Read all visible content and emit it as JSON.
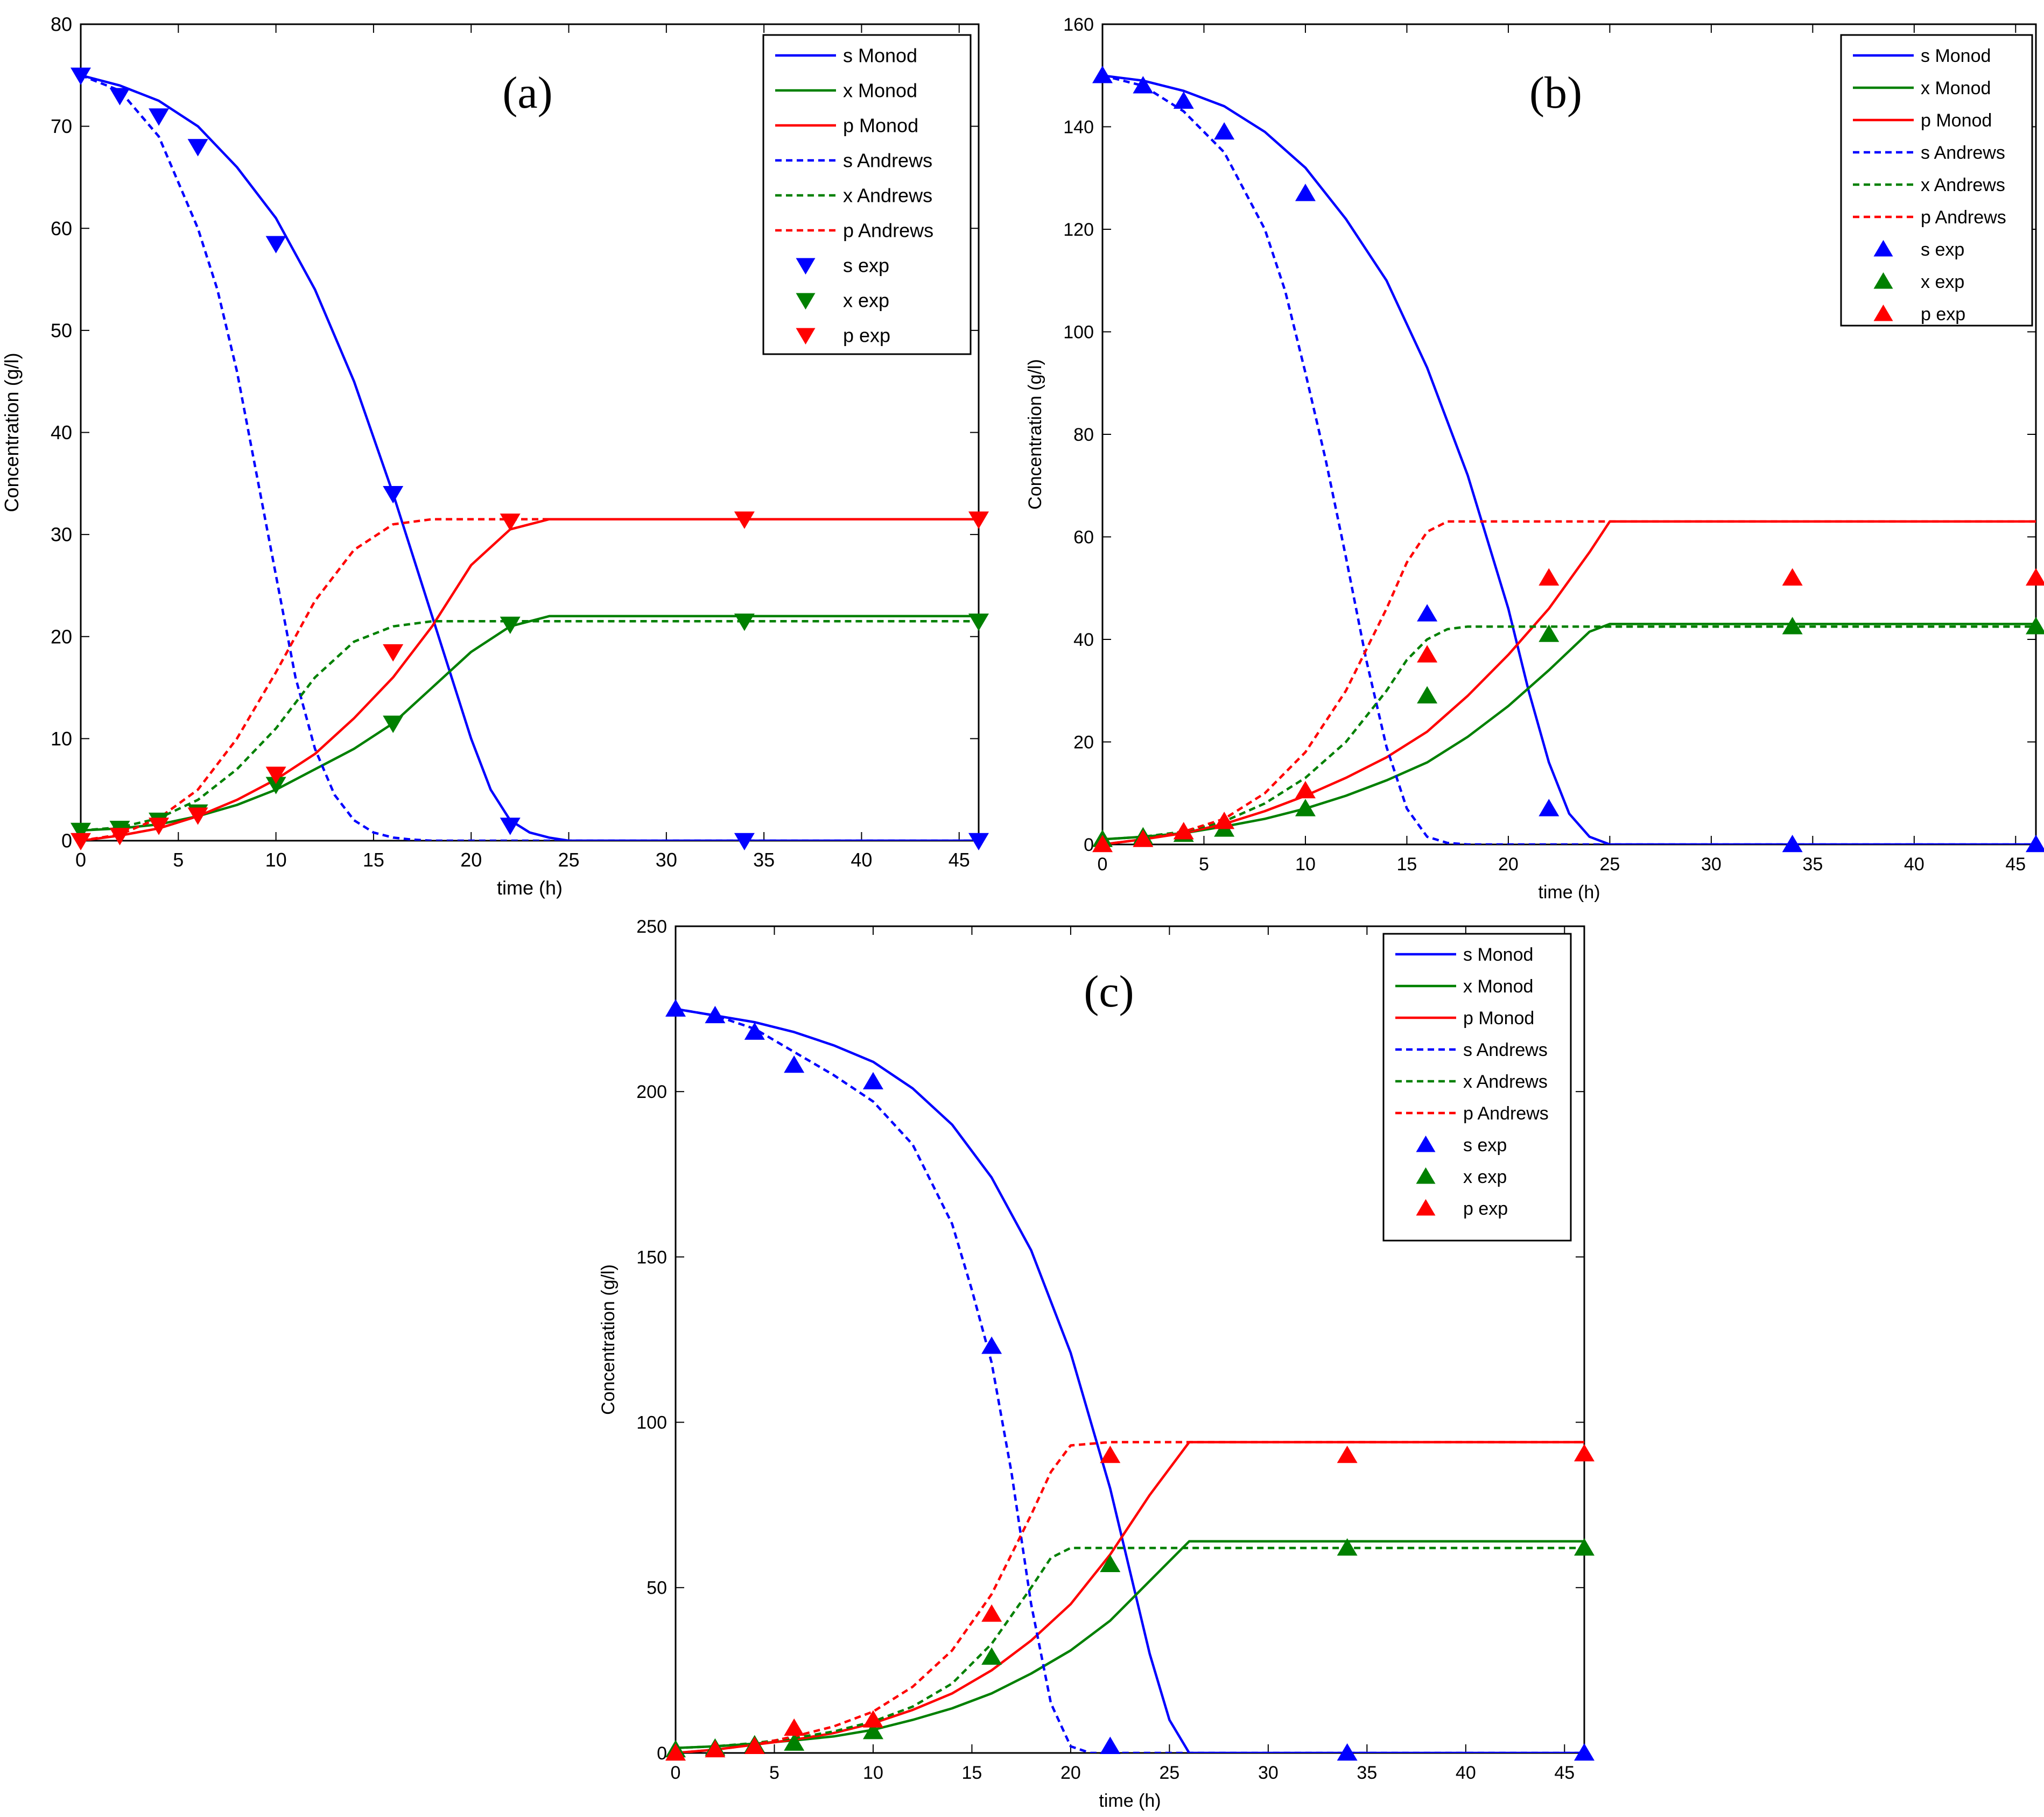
{
  "colors": {
    "s": "#0000ff",
    "x": "#008000",
    "p": "#ff0000",
    "axis": "#000000"
  },
  "chart_data": [
    {
      "type": "line",
      "panel_label": "(a)",
      "xlabel": "time (h)",
      "ylabel": "Concentration (g/l)",
      "xlim": [
        0,
        46
      ],
      "ylim": [
        0,
        80
      ],
      "xticks": [
        0,
        5,
        10,
        15,
        20,
        25,
        30,
        35,
        40,
        45
      ],
      "yticks": [
        0,
        10,
        20,
        30,
        40,
        50,
        60,
        70,
        80
      ],
      "legend_position": "top-right",
      "exp_marker": "triangle-down",
      "legend": [
        "s Monod",
        "x Monod",
        "p Monod",
        "s Andrews",
        "x Andrews",
        "p Andrews",
        "s exp",
        "x exp",
        "p exp"
      ],
      "series": [
        {
          "name": "s Monod",
          "var": "s",
          "style": "solid",
          "x": [
            0,
            2,
            4,
            6,
            8,
            10,
            12,
            14,
            16,
            18,
            20,
            21,
            22,
            23,
            24,
            25,
            30,
            35,
            40,
            46
          ],
          "y": [
            75,
            74,
            72.5,
            70,
            66,
            61,
            54,
            45,
            34,
            22,
            10,
            5,
            2,
            0.8,
            0.3,
            0,
            0,
            0,
            0,
            0
          ]
        },
        {
          "name": "x Monod",
          "var": "x",
          "style": "solid",
          "x": [
            0,
            2,
            4,
            6,
            8,
            10,
            12,
            14,
            16,
            18,
            20,
            22,
            24,
            25,
            30,
            35,
            40,
            46
          ],
          "y": [
            1,
            1.2,
            1.6,
            2.4,
            3.5,
            5,
            7,
            9,
            11.5,
            15,
            18.5,
            21,
            22,
            22,
            22,
            22,
            22,
            22
          ]
        },
        {
          "name": "p Monod",
          "var": "p",
          "style": "solid",
          "x": [
            0,
            2,
            4,
            6,
            8,
            10,
            12,
            14,
            16,
            18,
            20,
            22,
            24,
            25,
            30,
            35,
            40,
            46
          ],
          "y": [
            0,
            0.5,
            1.2,
            2.4,
            4,
            6,
            8.5,
            12,
            16,
            21,
            27,
            30.5,
            31.5,
            31.5,
            31.5,
            31.5,
            31.5,
            31.5
          ]
        },
        {
          "name": "s Andrews",
          "var": "s",
          "style": "dashed",
          "x": [
            0,
            2,
            4,
            6,
            7,
            8,
            9,
            10,
            11,
            12,
            13,
            14,
            15,
            16,
            17,
            18,
            20,
            25,
            35,
            46
          ],
          "y": [
            75,
            73.5,
            69,
            60,
            54,
            46,
            36,
            26,
            16,
            9,
            4.5,
            2,
            0.8,
            0.3,
            0.1,
            0,
            0,
            0,
            0,
            0
          ]
        },
        {
          "name": "x Andrews",
          "var": "x",
          "style": "dashed",
          "x": [
            0,
            2,
            4,
            6,
            8,
            10,
            12,
            14,
            16,
            18,
            20,
            25,
            30,
            35,
            40,
            46
          ],
          "y": [
            1,
            1.3,
            2.2,
            4,
            7,
            11,
            16,
            19.5,
            21,
            21.5,
            21.5,
            21.5,
            21.5,
            21.5,
            21.5,
            21.5
          ]
        },
        {
          "name": "p Andrews",
          "var": "p",
          "style": "dashed",
          "x": [
            0,
            2,
            4,
            6,
            8,
            10,
            12,
            14,
            16,
            18,
            20,
            25,
            30,
            35,
            40,
            46
          ],
          "y": [
            0,
            0.6,
            2.2,
            5,
            10,
            16.5,
            23.5,
            28.5,
            31,
            31.5,
            31.5,
            31.5,
            31.5,
            31.5,
            31.5,
            31.5
          ]
        },
        {
          "name": "s exp",
          "var": "s",
          "style": "marker",
          "x": [
            0,
            2,
            4,
            6,
            10,
            16,
            22,
            34,
            46
          ],
          "y": [
            75,
            73,
            71,
            68,
            58.5,
            34,
            1.5,
            0,
            0
          ]
        },
        {
          "name": "x exp",
          "var": "x",
          "style": "marker",
          "x": [
            0,
            2,
            4,
            6,
            10,
            16,
            22,
            34,
            46
          ],
          "y": [
            1,
            1.2,
            2,
            2.8,
            5.5,
            11.5,
            21.2,
            21.5,
            21.5
          ]
        },
        {
          "name": "p exp",
          "var": "p",
          "style": "marker",
          "x": [
            0,
            2,
            4,
            6,
            10,
            16,
            22,
            34,
            46
          ],
          "y": [
            0,
            0.5,
            1.5,
            2.5,
            6.5,
            18.5,
            31.3,
            31.5,
            31.5
          ]
        }
      ]
    },
    {
      "type": "line",
      "panel_label": "(b)",
      "xlabel": "time (h)",
      "ylabel": "Concentration (g/l)",
      "xlim": [
        0,
        46
      ],
      "ylim": [
        0,
        160
      ],
      "xticks": [
        0,
        5,
        10,
        15,
        20,
        25,
        30,
        35,
        40,
        45
      ],
      "yticks": [
        0,
        20,
        40,
        60,
        80,
        100,
        120,
        140,
        160
      ],
      "legend_position": "top-right",
      "exp_marker": "triangle-up",
      "legend": [
        "s Monod",
        "x Monod",
        "p Monod",
        "s Andrews",
        "x Andrews",
        "p Andrews",
        "s exp",
        "x exp",
        "p exp"
      ],
      "series": [
        {
          "name": "s Monod",
          "var": "s",
          "style": "solid",
          "x": [
            0,
            2,
            4,
            6,
            8,
            10,
            12,
            14,
            16,
            18,
            20,
            21,
            22,
            23,
            24,
            25,
            30,
            35,
            40,
            46
          ],
          "y": [
            150,
            149,
            147,
            144,
            139,
            132,
            122,
            110,
            93,
            72,
            46,
            30,
            16,
            6,
            1.5,
            0,
            0,
            0,
            0,
            0
          ]
        },
        {
          "name": "x Monod",
          "var": "x",
          "style": "solid",
          "x": [
            0,
            2,
            4,
            6,
            8,
            10,
            12,
            14,
            16,
            18,
            20,
            22,
            24,
            25,
            30,
            35,
            40,
            46
          ],
          "y": [
            1,
            1.5,
            2.2,
            3.5,
            5,
            7,
            9.5,
            12.5,
            16,
            21,
            27,
            34,
            41.5,
            43,
            43,
            43,
            43,
            43
          ]
        },
        {
          "name": "p Monod",
          "var": "p",
          "style": "solid",
          "x": [
            0,
            2,
            4,
            6,
            8,
            10,
            12,
            14,
            16,
            18,
            20,
            22,
            24,
            25,
            30,
            35,
            40,
            46
          ],
          "y": [
            0,
            1,
            2.2,
            4,
            6.5,
            9.5,
            13,
            17,
            22,
            29,
            37,
            46,
            57,
            63,
            63,
            63,
            63,
            63
          ]
        },
        {
          "name": "s Andrews",
          "var": "s",
          "style": "dashed",
          "x": [
            0,
            2,
            4,
            6,
            8,
            9,
            10,
            11,
            12,
            13,
            14,
            15,
            16,
            17,
            18,
            20,
            25,
            35,
            46
          ],
          "y": [
            150,
            148,
            143,
            135,
            120,
            108,
            92,
            75,
            56,
            36,
            19,
            7,
            1.5,
            0.3,
            0,
            0,
            0,
            0,
            0
          ]
        },
        {
          "name": "x Andrews",
          "var": "x",
          "style": "dashed",
          "x": [
            0,
            2,
            4,
            6,
            8,
            10,
            12,
            14,
            15,
            16,
            17,
            18,
            20,
            25,
            30,
            35,
            40,
            46
          ],
          "y": [
            1,
            1.5,
            2.5,
            4.5,
            8,
            13,
            20,
            30,
            36,
            40,
            42,
            42.5,
            42.5,
            42.5,
            42.5,
            42.5,
            42.5,
            42.5
          ]
        },
        {
          "name": "p Andrews",
          "var": "p",
          "style": "dashed",
          "x": [
            0,
            2,
            4,
            6,
            8,
            10,
            12,
            14,
            15,
            16,
            17,
            18,
            20,
            25,
            30,
            35,
            40,
            46
          ],
          "y": [
            0,
            1,
            2.5,
            5,
            10,
            18,
            30,
            46,
            55,
            61,
            63,
            63,
            63,
            63,
            63,
            63,
            63,
            63
          ]
        },
        {
          "name": "s exp",
          "var": "s",
          "style": "marker",
          "x": [
            0,
            2,
            4,
            6,
            10,
            16,
            22,
            34,
            46
          ],
          "y": [
            150,
            148,
            145,
            139,
            127,
            45,
            7,
            0,
            0
          ]
        },
        {
          "name": "x exp",
          "var": "x",
          "style": "marker",
          "x": [
            0,
            2,
            4,
            6,
            10,
            16,
            22,
            34,
            46
          ],
          "y": [
            1,
            1.5,
            2,
            3,
            7,
            29,
            41,
            42.5,
            42.5
          ]
        },
        {
          "name": "p exp",
          "var": "p",
          "style": "marker",
          "x": [
            0,
            2,
            4,
            6,
            10,
            16,
            22,
            34,
            46
          ],
          "y": [
            0,
            1,
            2.5,
            4.5,
            10.5,
            37,
            52,
            52,
            52
          ]
        }
      ]
    },
    {
      "type": "line",
      "panel_label": "(c)",
      "xlabel": "time (h)",
      "ylabel": "Concentration (g/l)",
      "xlim": [
        0,
        46
      ],
      "ylim": [
        0,
        250
      ],
      "xticks": [
        0,
        5,
        10,
        15,
        20,
        25,
        30,
        35,
        40,
        45
      ],
      "yticks": [
        0,
        50,
        100,
        150,
        200,
        250
      ],
      "legend_position": "top-right",
      "exp_marker": "triangle-up",
      "legend": [
        "s Monod",
        "x Monod",
        "p Monod",
        "s Andrews",
        "x Andrews",
        "p Andrews",
        "s exp",
        "x exp",
        "p exp"
      ],
      "series": [
        {
          "name": "s Monod",
          "var": "s",
          "style": "solid",
          "x": [
            0,
            2,
            4,
            6,
            8,
            10,
            12,
            14,
            16,
            18,
            20,
            22,
            23,
            24,
            25,
            26,
            30,
            35,
            40,
            46
          ],
          "y": [
            225,
            223,
            221,
            218,
            214,
            209,
            201,
            190,
            174,
            152,
            121,
            80,
            55,
            30,
            10,
            0,
            0,
            0,
            0,
            0
          ]
        },
        {
          "name": "x Monod",
          "var": "x",
          "style": "solid",
          "x": [
            0,
            2,
            4,
            6,
            8,
            10,
            12,
            14,
            16,
            18,
            20,
            22,
            24,
            26,
            30,
            35,
            40,
            46
          ],
          "y": [
            1.5,
            2,
            2.8,
            3.8,
            5,
            7,
            10,
            13.5,
            18,
            24,
            31,
            40,
            52,
            64,
            64,
            64,
            64,
            64
          ]
        },
        {
          "name": "p Monod",
          "var": "p",
          "style": "solid",
          "x": [
            0,
            2,
            4,
            6,
            8,
            10,
            12,
            14,
            16,
            18,
            20,
            22,
            24,
            26,
            30,
            35,
            40,
            46
          ],
          "y": [
            0,
            1,
            2.5,
            4,
            6,
            9,
            13,
            18,
            25,
            34,
            45,
            60,
            78,
            94,
            94,
            94,
            94,
            94
          ]
        },
        {
          "name": "s Andrews",
          "var": "s",
          "style": "dashed",
          "x": [
            0,
            2,
            4,
            6,
            8,
            10,
            12,
            14,
            15,
            16,
            17,
            18,
            19,
            20,
            21,
            25,
            35,
            46
          ],
          "y": [
            225,
            223,
            219,
            212,
            205,
            197,
            184,
            160,
            140,
            118,
            85,
            45,
            15,
            2,
            0,
            0,
            0,
            0
          ]
        },
        {
          "name": "x Andrews",
          "var": "x",
          "style": "dashed",
          "x": [
            0,
            2,
            4,
            6,
            8,
            10,
            12,
            14,
            16,
            18,
            19,
            20,
            22,
            25,
            30,
            35,
            40,
            46
          ],
          "y": [
            1.5,
            2,
            3,
            4.5,
            6.5,
            9.5,
            14,
            21,
            33,
            50,
            59,
            62,
            62,
            62,
            62,
            62,
            62,
            62
          ]
        },
        {
          "name": "p Andrews",
          "var": "p",
          "style": "dashed",
          "x": [
            0,
            2,
            4,
            6,
            8,
            10,
            12,
            14,
            16,
            18,
            19,
            20,
            22,
            25,
            30,
            35,
            40,
            46
          ],
          "y": [
            0,
            1,
            2.5,
            5,
            8,
            12.5,
            20,
            31,
            48,
            72,
            85,
            93,
            94,
            94,
            94,
            94,
            94,
            94
          ]
        },
        {
          "name": "s exp",
          "var": "s",
          "style": "marker",
          "x": [
            0,
            2,
            4,
            6,
            10,
            16,
            22,
            34,
            46
          ],
          "y": [
            225,
            223,
            218,
            208,
            203,
            123,
            2,
            0,
            0
          ]
        },
        {
          "name": "x exp",
          "var": "x",
          "style": "marker",
          "x": [
            0,
            2,
            4,
            6,
            10,
            16,
            22,
            34,
            46
          ],
          "y": [
            1,
            1.5,
            2.5,
            3,
            6.5,
            29,
            57,
            62,
            62
          ]
        },
        {
          "name": "p exp",
          "var": "p",
          "style": "marker",
          "x": [
            0,
            2,
            4,
            6,
            10,
            16,
            22,
            34,
            46
          ],
          "y": [
            0,
            1,
            2,
            7.5,
            10,
            42,
            90,
            90,
            90.5
          ]
        }
      ]
    }
  ]
}
